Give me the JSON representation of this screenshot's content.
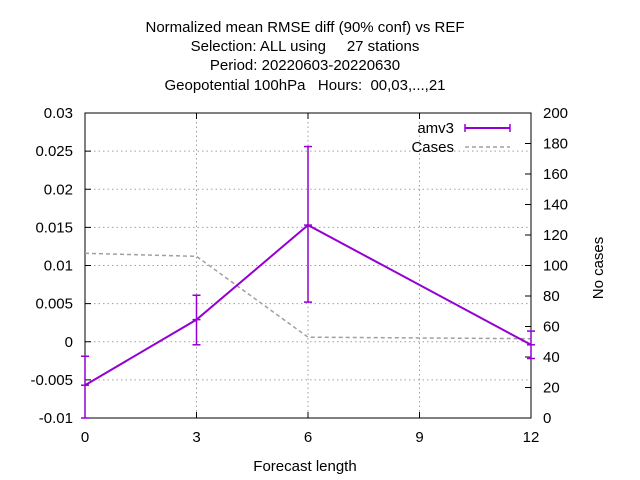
{
  "chart_data": {
    "type": "line",
    "title_lines": [
      "Normalized mean RMSE diff (90% conf) vs REF",
      "Selection: ALL using     27 stations",
      "Period: 20220603-20220630",
      "Geopotential 100hPa   Hours:  00,03,...,21"
    ],
    "xlabel": "Forecast length",
    "ylabel": "",
    "y2label": "No cases",
    "xlim": [
      0,
      12
    ],
    "ylim": [
      -0.01,
      0.03
    ],
    "y2lim": [
      0,
      200
    ],
    "x_ticks": [
      0,
      3,
      6,
      9,
      12
    ],
    "x_tick_labels": [
      "0",
      "3",
      "6",
      "9",
      "12"
    ],
    "y_ticks": [
      -0.01,
      -0.005,
      0,
      0.005,
      0.01,
      0.015,
      0.02,
      0.025,
      0.03
    ],
    "y_tick_labels": [
      "-0.01",
      "-0.005",
      "0",
      "0.005",
      "0.01",
      "0.015",
      "0.02",
      "0.025",
      "0.03"
    ],
    "y2_ticks": [
      0,
      20,
      40,
      60,
      80,
      100,
      120,
      140,
      160,
      180,
      200
    ],
    "y2_tick_labels": [
      "0",
      "20",
      "40",
      "60",
      "80",
      "100",
      "120",
      "140",
      "160",
      "180",
      "200"
    ],
    "grid": true,
    "legend_position": "top-right",
    "series": [
      {
        "name": "amv3",
        "axis": "y",
        "color": "#9400d3",
        "style": "line-errorbars",
        "x": [
          0,
          3,
          6,
          12
        ],
        "y": [
          -0.0057,
          0.0029,
          0.0153,
          -0.0004
        ],
        "err_low": [
          -0.01,
          -0.0004,
          0.0052,
          -0.0022
        ],
        "err_high": [
          -0.0019,
          0.0061,
          0.0256,
          0.0014
        ]
      },
      {
        "name": "Cases",
        "axis": "y2",
        "color": "#a0a0a0",
        "style": "dashed",
        "x": [
          0,
          3,
          6,
          12
        ],
        "y": [
          108,
          106,
          53,
          52
        ]
      }
    ]
  }
}
